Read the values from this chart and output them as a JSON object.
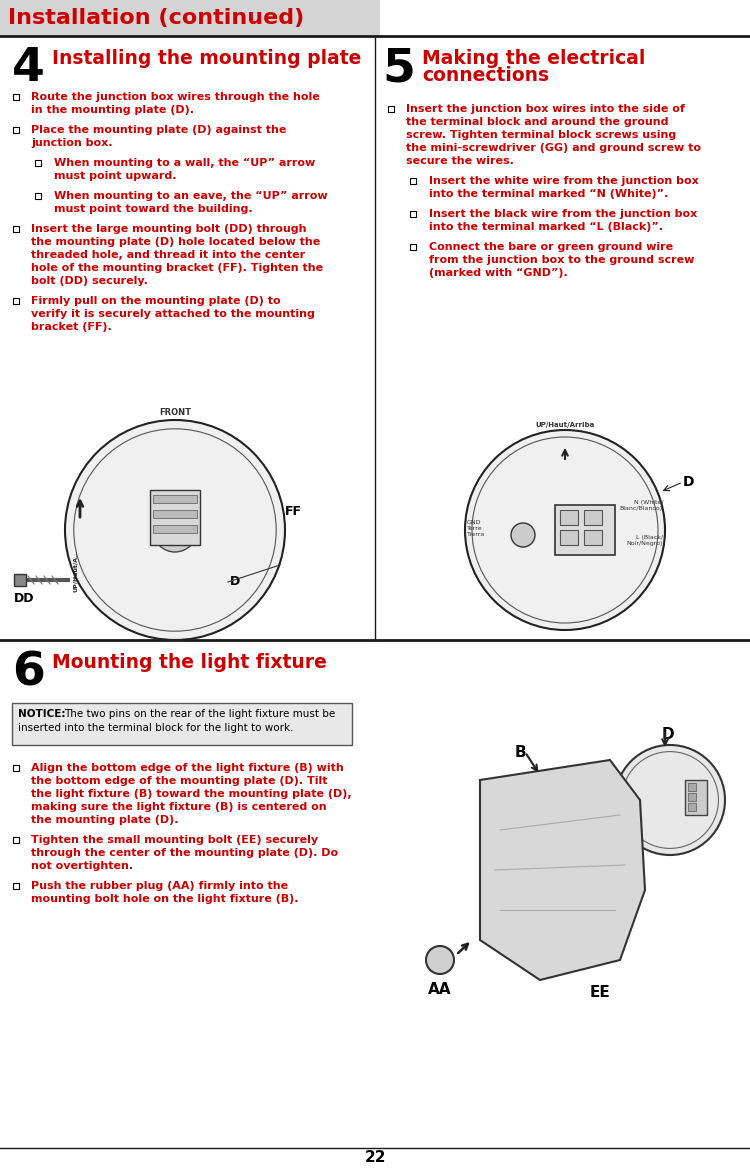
{
  "page_number": "22",
  "header_text": "Installation (continued)",
  "header_bg": "#d4d4d4",
  "header_text_color": "#cc0000",
  "divider_color": "#1a1a1a",
  "text_color": "#cc0000",
  "black_color": "#000000",
  "bg_color": "#ffffff",
  "section4_number": "4",
  "section4_title": "Installing the mounting plate",
  "section4_bullets": [
    {
      "level": 0,
      "text": "Route the junction box wires through the hole\nin the mounting plate (D)."
    },
    {
      "level": 0,
      "text": "Place the mounting plate (D) against the\njunction box."
    },
    {
      "level": 1,
      "text": "When mounting to a wall, the “UP” arrow\nmust point upward."
    },
    {
      "level": 1,
      "text": "When mounting to an eave, the “UP” arrow\nmust point toward the building."
    },
    {
      "level": 0,
      "text": "Insert the large mounting bolt (DD) through\nthe mounting plate (D) hole located below the\nthreaded hole, and thread it into the center\nhole of the mounting bracket (FF). Tighten the\nbolt (DD) securely."
    },
    {
      "level": 0,
      "text": "Firmly pull on the mounting plate (D) to\nverify it is securely attached to the mounting\nbracket (FF)."
    }
  ],
  "section5_number": "5",
  "section5_title_line1": "Making the electrical",
  "section5_title_line2": "connections",
  "section5_bullets": [
    {
      "level": 0,
      "text": "Insert the junction box wires into the side of\nthe terminal block and around the ground\nscrew. Tighten terminal block screws using\nthe mini-screwdriver (GG) and ground screw to\nsecure the wires."
    },
    {
      "level": 1,
      "text": "Insert the white wire from the junction box\ninto the terminal marked “N (White)”."
    },
    {
      "level": 1,
      "text": "Insert the black wire from the junction box\ninto the terminal marked “L (Black)”."
    },
    {
      "level": 1,
      "text": "Connect the bare or green ground wire\nfrom the junction box to the ground screw\n(marked with “GND”)."
    }
  ],
  "section6_number": "6",
  "section6_title": "Mounting the light fixture",
  "notice_label": "NOTICE:",
  "notice_text": "The two pins on the rear of the light fixture must be\ninserted into the terminal block for the light to work.",
  "section6_bullets": [
    {
      "level": 0,
      "text": "Align the bottom edge of the light fixture (B) with\nthe bottom edge of the mounting plate (D). Tilt\nthe light fixture (B) toward the mounting plate (D),\nmaking sure the light fixture (B) is centered on\nthe mounting plate (D)."
    },
    {
      "level": 0,
      "text": "Tighten the small mounting bolt (EE) securely\nthrough the center of the mounting plate (D). Do\nnot overtighten."
    },
    {
      "level": 0,
      "text": "Push the rubber plug (AA) firmly into the\nmounting bolt hole on the light fixture (B)."
    }
  ]
}
